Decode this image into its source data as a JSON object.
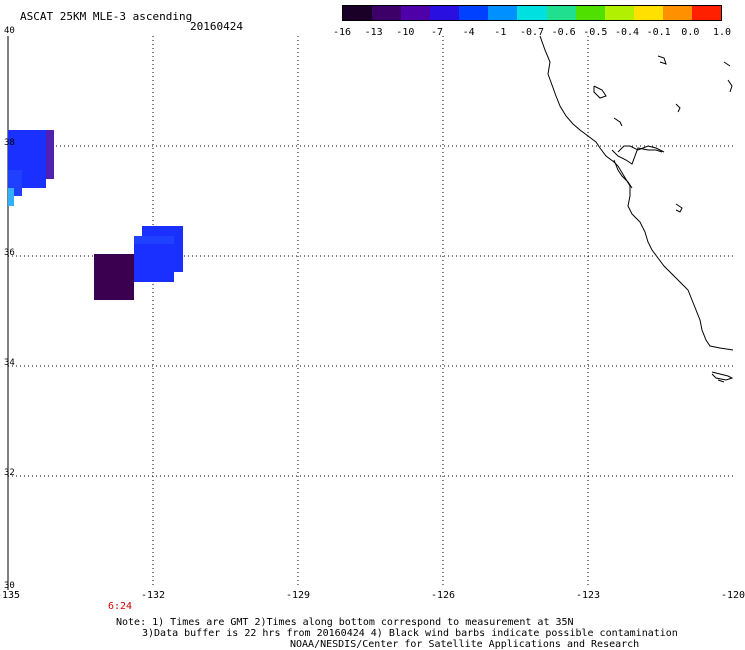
{
  "header": {
    "title": "ASCAT 25KM MLE-3 ascending",
    "date": "20160424"
  },
  "colorbar": {
    "labels": [
      "-16",
      "-13",
      "-10",
      "-7",
      "-4",
      "-1",
      "-0.7",
      "-0.6",
      "-0.5",
      "-0.4",
      "-0.1",
      "0.0",
      "1.0"
    ],
    "colors": [
      "#1a0026",
      "#3c0068",
      "#5000a8",
      "#2a10e0",
      "#0040ff",
      "#0090ff",
      "#00e0e0",
      "#20e090",
      "#50e000",
      "#b0f000",
      "#ffe000",
      "#ff9000",
      "#ff2000"
    ]
  },
  "map": {
    "lon_range": [
      -135,
      -120
    ],
    "lat_range": [
      30,
      40
    ],
    "x_ticks": [
      "-135",
      "-132",
      "-129",
      "-126",
      "-123",
      "-120"
    ],
    "y_ticks": [
      "40",
      "38",
      "36",
      "34",
      "32",
      "30"
    ],
    "time_marker": "6:24",
    "swath_colors": {
      "purple": "#5020b0",
      "blue": "#1a30ff",
      "cyan": "#30b0ff",
      "dark": "#3c0050"
    }
  },
  "notes": {
    "line1": "Note: 1) Times are GMT 2)Times along bottom correspond to measurement at 35N",
    "line2": "3)Data buffer is 22 hrs from 20160424 4) Black wind barbs indicate possible contamination",
    "line3": "NOAA/NESDIS/Center for Satellite Applications and Research"
  }
}
